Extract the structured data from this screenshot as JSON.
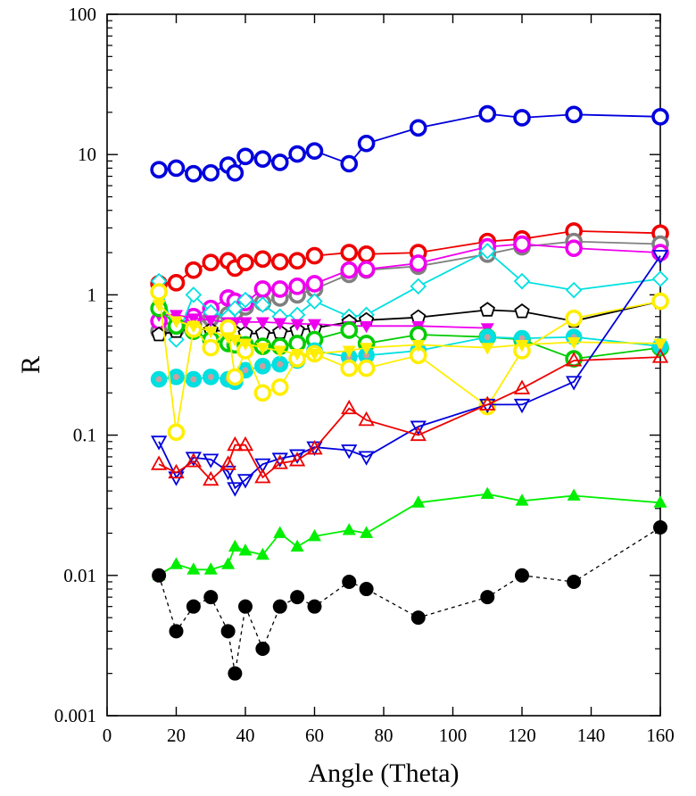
{
  "chart_data": {
    "type": "scatter",
    "title": "",
    "xlabel": "Angle (Theta)",
    "ylabel": "R",
    "xlim": [
      0,
      160
    ],
    "ylim": [
      0.001,
      100
    ],
    "yscale": "log",
    "grid": false,
    "legend": "none",
    "xticks": [
      0,
      20,
      40,
      60,
      80,
      100,
      120,
      140,
      160
    ],
    "xtick_labels": [
      "0",
      "20",
      "40",
      "60",
      "80",
      "100",
      "120",
      "140",
      "160"
    ],
    "yticks": [
      0.001,
      0.01,
      0.1,
      1,
      10,
      100
    ],
    "ytick_labels": [
      "0.001",
      "0.01",
      "0.1",
      "1",
      "10",
      "100"
    ],
    "series": [
      {
        "color": "#0000dd",
        "marker": "circle-open-bold",
        "line": "solid",
        "x": [
          15,
          20,
          25,
          30,
          35,
          37,
          40,
          45,
          50,
          55,
          60,
          70,
          75,
          90,
          110,
          120,
          135,
          160
        ],
        "y": [
          7.8,
          8.0,
          7.3,
          7.4,
          8.4,
          7.4,
          9.7,
          9.3,
          8.8,
          10.1,
          10.6,
          8.6,
          12,
          15.5,
          19.5,
          18.3,
          19.3,
          18.6
        ]
      },
      {
        "color": "#ee0000",
        "marker": "circle-open-bold",
        "line": "solid",
        "x": [
          15,
          20,
          25,
          30,
          35,
          37,
          40,
          45,
          50,
          55,
          60,
          70,
          75,
          90,
          110,
          120,
          135,
          160
        ],
        "y": [
          1.2,
          1.22,
          1.5,
          1.7,
          1.75,
          1.55,
          1.7,
          1.8,
          1.72,
          1.75,
          1.9,
          2.0,
          1.95,
          2.0,
          2.4,
          2.5,
          2.85,
          2.75
        ]
      },
      {
        "color": "#808080",
        "marker": "circle-open-bold",
        "line": "solid",
        "x": [
          15,
          20,
          25,
          30,
          35,
          37,
          40,
          45,
          50,
          55,
          60,
          70,
          75,
          90,
          110,
          120,
          135,
          160
        ],
        "y": [
          0.55,
          0.57,
          0.62,
          0.68,
          0.72,
          0.75,
          0.82,
          0.88,
          0.95,
          1.0,
          1.1,
          1.4,
          1.5,
          1.6,
          1.95,
          2.2,
          2.4,
          2.3
        ]
      },
      {
        "color": "#ee00ee",
        "marker": "circle-open-bold",
        "line": "solid",
        "x": [
          15,
          20,
          25,
          30,
          35,
          37,
          40,
          45,
          50,
          55,
          60,
          70,
          75,
          90,
          110,
          120,
          135,
          160
        ],
        "y": [
          0.65,
          0.6,
          0.7,
          0.8,
          0.95,
          0.9,
          0.88,
          1.1,
          1.1,
          1.15,
          1.2,
          1.5,
          1.52,
          1.68,
          2.2,
          2.3,
          2.15,
          2.0
        ]
      },
      {
        "color": "#00e0e0",
        "marker": "diamond-open",
        "line": "solid",
        "x": [
          15,
          20,
          25,
          30,
          35,
          37,
          40,
          45,
          50,
          55,
          60,
          70,
          75,
          90,
          110,
          120,
          135,
          160
        ],
        "y": [
          1.25,
          0.48,
          1.0,
          0.75,
          0.7,
          0.8,
          0.92,
          0.85,
          0.7,
          0.72,
          0.9,
          0.7,
          0.72,
          1.15,
          2.05,
          1.25,
          1.08,
          1.3
        ]
      },
      {
        "color": "#000000",
        "marker": "pentagon-open",
        "line": "solid",
        "x": [
          15,
          20,
          25,
          30,
          35,
          37,
          40,
          45,
          50,
          55,
          60,
          70,
          75,
          90,
          110,
          120,
          135,
          160
        ],
        "y": [
          0.52,
          0.55,
          0.58,
          0.56,
          0.55,
          0.54,
          0.53,
          0.53,
          0.54,
          0.56,
          0.58,
          0.64,
          0.66,
          0.69,
          0.78,
          0.76,
          0.65,
          0.9
        ]
      },
      {
        "color": "#ee00ee",
        "marker": "triangle-down-filled",
        "line": "solid",
        "x": [
          15,
          20,
          25,
          30,
          35,
          37,
          40,
          45,
          50,
          55,
          60,
          70,
          75,
          90,
          110
        ],
        "y": [
          0.72,
          0.72,
          0.68,
          0.66,
          0.64,
          0.64,
          0.64,
          0.64,
          0.63,
          0.62,
          0.62,
          0.6,
          0.6,
          0.6,
          0.58
        ]
      },
      {
        "color": "#00cc00",
        "marker": "circle-open-bold",
        "line": "solid",
        "x": [
          15,
          20,
          25,
          30,
          35,
          37,
          40,
          45,
          50,
          55,
          60,
          70,
          75,
          90,
          110,
          120,
          135,
          160
        ],
        "y": [
          0.8,
          0.6,
          0.55,
          0.48,
          0.45,
          0.44,
          0.44,
          0.43,
          0.43,
          0.45,
          0.48,
          0.56,
          0.45,
          0.52,
          0.5,
          0.48,
          0.35,
          0.42
        ]
      },
      {
        "color": "#00e0e0",
        "marker": "circle-filled-ring",
        "line": "solid",
        "x": [
          15,
          20,
          25,
          30,
          35,
          37,
          40,
          45,
          50,
          55,
          60,
          70,
          75,
          90,
          110,
          120,
          135,
          160
        ],
        "y": [
          0.25,
          0.26,
          0.25,
          0.26,
          0.25,
          0.24,
          0.29,
          0.31,
          0.32,
          0.34,
          0.4,
          0.36,
          0.37,
          0.4,
          0.5,
          0.49,
          0.5,
          0.43
        ]
      },
      {
        "color": "#ffee00",
        "marker": "circle-open-bold",
        "line": "solid",
        "x": [
          15,
          20,
          25,
          30,
          35,
          37,
          40,
          45,
          50,
          55,
          60,
          70,
          75,
          90,
          110,
          120,
          135,
          160
        ],
        "y": [
          1.05,
          0.105,
          0.57,
          0.42,
          0.58,
          0.26,
          0.4,
          0.2,
          0.22,
          0.35,
          0.38,
          0.3,
          0.3,
          0.37,
          0.16,
          0.4,
          0.68,
          0.9
        ]
      },
      {
        "color": "#ffee00",
        "marker": "triangle-down-filled",
        "line": "solid",
        "x": [
          15,
          20,
          25,
          30,
          35,
          37,
          40,
          45,
          50,
          55,
          60,
          70,
          75,
          90,
          110,
          120,
          135,
          160
        ],
        "y": [
          0.85,
          0.65,
          0.6,
          0.55,
          0.5,
          0.48,
          0.45,
          0.42,
          0.4,
          0.38,
          0.38,
          0.4,
          0.42,
          0.44,
          0.42,
          0.44,
          0.46,
          0.45
        ]
      },
      {
        "color": "#0000dd",
        "marker": "triangle-down-open",
        "line": "solid",
        "x": [
          15,
          20,
          25,
          30,
          35,
          37,
          40,
          45,
          50,
          55,
          60,
          70,
          75,
          90,
          110,
          120,
          135,
          160
        ],
        "y": [
          0.09,
          0.05,
          0.069,
          0.067,
          0.055,
          0.042,
          0.048,
          0.062,
          0.068,
          0.072,
          0.082,
          0.078,
          0.07,
          0.115,
          0.165,
          0.165,
          0.24,
          1.9
        ]
      },
      {
        "color": "#ee0000",
        "marker": "triangle-up-open",
        "line": "solid",
        "x": [
          15,
          20,
          25,
          30,
          35,
          37,
          40,
          45,
          50,
          55,
          60,
          70,
          75,
          90,
          110,
          120,
          135,
          160
        ],
        "y": [
          0.062,
          0.054,
          0.065,
          0.048,
          0.062,
          0.085,
          0.085,
          0.05,
          0.063,
          0.066,
          0.08,
          0.155,
          0.128,
          0.1,
          0.165,
          0.215,
          0.34,
          0.36
        ]
      },
      {
        "color": "#00ee00",
        "marker": "triangle-up-filled",
        "line": "solid",
        "x": [
          15,
          20,
          25,
          30,
          35,
          37,
          40,
          45,
          50,
          55,
          60,
          70,
          75,
          90,
          110,
          120,
          135,
          160
        ],
        "y": [
          0.01,
          0.012,
          0.011,
          0.011,
          0.012,
          0.016,
          0.015,
          0.014,
          0.02,
          0.016,
          0.019,
          0.021,
          0.02,
          0.033,
          0.038,
          0.034,
          0.037,
          0.033
        ]
      },
      {
        "color": "#000000",
        "marker": "circle-filled",
        "line": "dashed",
        "x": [
          15,
          20,
          25,
          30,
          35,
          37,
          40,
          45,
          50,
          55,
          60,
          70,
          75,
          90,
          110,
          120,
          135,
          160
        ],
        "y": [
          0.01,
          0.004,
          0.006,
          0.007,
          0.004,
          0.002,
          0.006,
          0.003,
          0.006,
          0.007,
          0.006,
          0.009,
          0.008,
          0.005,
          0.007,
          0.01,
          0.009,
          0.022
        ]
      }
    ]
  }
}
